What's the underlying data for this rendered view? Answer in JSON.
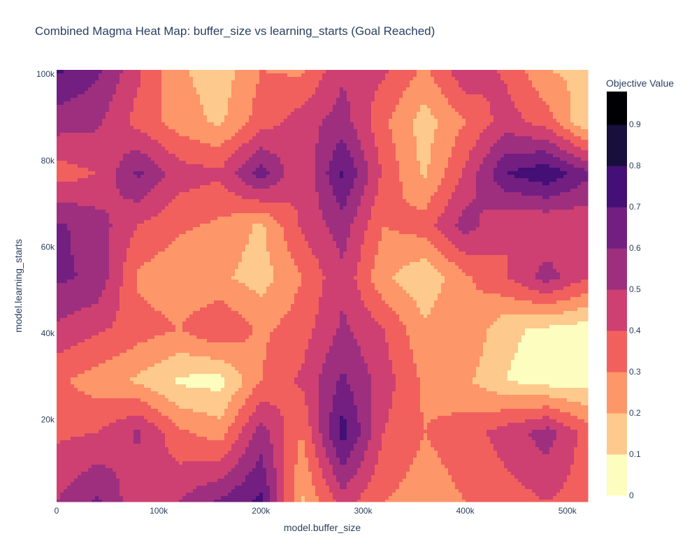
{
  "chart_data": {
    "type": "heatmap",
    "style": "filled-contour",
    "title": "Combined Magma Heat Map: buffer_size vs learning_starts (Goal Reached)",
    "xlabel": "model.buffer_size",
    "ylabel": "model.learning_starts",
    "xlim": [
      0,
      520000
    ],
    "ylim": [
      1000,
      101000
    ],
    "x_ticks": [
      {
        "value": 0,
        "label": "0"
      },
      {
        "value": 100000,
        "label": "100k"
      },
      {
        "value": 200000,
        "label": "200k"
      },
      {
        "value": 300000,
        "label": "300k"
      },
      {
        "value": 400000,
        "label": "400k"
      },
      {
        "value": 500000,
        "label": "500k"
      }
    ],
    "y_ticks": [
      {
        "value": 20000,
        "label": "20k"
      },
      {
        "value": 40000,
        "label": "40k"
      },
      {
        "value": 60000,
        "label": "60k"
      },
      {
        "value": 80000,
        "label": "80k"
      },
      {
        "value": 100000,
        "label": "100k"
      }
    ],
    "colorbar": {
      "title": "Objective Value",
      "range": [
        0,
        0.98
      ],
      "levels": [
        0,
        0.1,
        0.2,
        0.3,
        0.4,
        0.5,
        0.6,
        0.7,
        0.8,
        0.9
      ],
      "tick_labels": [
        "0",
        "0.1",
        "0.2",
        "0.3",
        "0.4",
        "0.5",
        "0.6",
        "0.7",
        "0.8",
        "0.9"
      ],
      "colors": [
        "#fcfdbf",
        "#fec98d",
        "#fd9668",
        "#f1605d",
        "#cd4071",
        "#9e2f7f",
        "#721f81",
        "#440f76",
        "#180f3d",
        "#000004"
      ]
    },
    "x_grid": [
      0,
      40000,
      80000,
      120000,
      160000,
      200000,
      240000,
      280000,
      320000,
      360000,
      400000,
      440000,
      480000,
      520000
    ],
    "y_grid": [
      101000,
      89000,
      77000,
      65000,
      53000,
      41000,
      29000,
      17000,
      1000
    ],
    "z": [
      [
        0.72,
        0.62,
        0.42,
        0.22,
        0.14,
        0.3,
        0.28,
        0.48,
        0.42,
        0.28,
        0.48,
        0.38,
        0.2,
        0.18
      ],
      [
        0.55,
        0.52,
        0.36,
        0.25,
        0.18,
        0.35,
        0.45,
        0.55,
        0.32,
        0.15,
        0.3,
        0.45,
        0.35,
        0.1
      ],
      [
        0.35,
        0.4,
        0.62,
        0.45,
        0.42,
        0.65,
        0.4,
        0.72,
        0.38,
        0.18,
        0.42,
        0.7,
        0.78,
        0.62
      ],
      [
        0.62,
        0.55,
        0.4,
        0.32,
        0.28,
        0.18,
        0.42,
        0.55,
        0.3,
        0.35,
        0.55,
        0.4,
        0.4,
        0.42
      ],
      [
        0.62,
        0.58,
        0.28,
        0.22,
        0.22,
        0.15,
        0.3,
        0.48,
        0.22,
        0.12,
        0.28,
        0.4,
        0.55,
        0.4
      ],
      [
        0.48,
        0.42,
        0.35,
        0.3,
        0.4,
        0.28,
        0.35,
        0.52,
        0.4,
        0.22,
        0.3,
        0.12,
        0.08,
        0.05
      ],
      [
        0.32,
        0.25,
        0.18,
        0.08,
        0.06,
        0.3,
        0.42,
        0.62,
        0.45,
        0.28,
        0.22,
        0.1,
        0.05,
        0.05
      ],
      [
        0.38,
        0.4,
        0.52,
        0.32,
        0.25,
        0.55,
        0.3,
        0.75,
        0.4,
        0.3,
        0.35,
        0.45,
        0.55,
        0.35
      ],
      [
        0.5,
        0.62,
        0.42,
        0.5,
        0.62,
        0.72,
        0.18,
        0.45,
        0.3,
        0.25,
        0.3,
        0.35,
        0.4,
        0.35
      ]
    ]
  }
}
